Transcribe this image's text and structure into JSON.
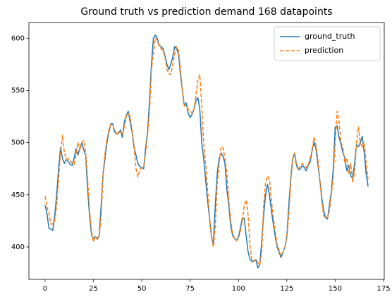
{
  "chart_data": {
    "type": "line",
    "title": "Ground truth vs prediction demand 168 datapoints",
    "x": [
      0,
      1,
      2,
      3,
      4,
      5,
      6,
      7,
      8,
      9,
      10,
      11,
      12,
      13,
      14,
      15,
      16,
      17,
      18,
      19,
      20,
      21,
      22,
      23,
      24,
      25,
      26,
      27,
      28,
      29,
      30,
      31,
      32,
      33,
      34,
      35,
      36,
      37,
      38,
      39,
      40,
      41,
      42,
      43,
      44,
      45,
      46,
      47,
      48,
      49,
      50,
      51,
      52,
      53,
      54,
      55,
      56,
      57,
      58,
      59,
      60,
      61,
      62,
      63,
      64,
      65,
      66,
      67,
      68,
      69,
      70,
      71,
      72,
      73,
      74,
      75,
      76,
      77,
      78,
      79,
      80,
      81,
      82,
      83,
      84,
      85,
      86,
      87,
      88,
      89,
      90,
      91,
      92,
      93,
      94,
      95,
      96,
      97,
      98,
      99,
      100,
      101,
      102,
      103,
      104,
      105,
      106,
      107,
      108,
      109,
      110,
      111,
      112,
      113,
      114,
      115,
      116,
      117,
      118,
      119,
      120,
      121,
      122,
      123,
      124,
      125,
      126,
      127,
      128,
      129,
      130,
      131,
      132,
      133,
      134,
      135,
      136,
      137,
      138,
      139,
      140,
      141,
      142,
      143,
      144,
      145,
      146,
      147,
      148,
      149,
      150,
      151,
      152,
      153,
      154,
      155,
      156,
      157,
      158,
      159,
      160,
      161,
      162,
      163,
      164,
      165,
      166,
      167
    ],
    "series": [
      {
        "name": "ground_truth",
        "color": "#1f77b4",
        "dash": "solid",
        "values": [
          440,
          432,
          418,
          417,
          416,
          430,
          450,
          475,
          495,
          485,
          480,
          484,
          482,
          479,
          478,
          485,
          494,
          488,
          495,
          500,
          493,
          488,
          455,
          430,
          412,
          408,
          410,
          408,
          411,
          440,
          470,
          485,
          500,
          510,
          518,
          518,
          510,
          508,
          509,
          512,
          505,
          520,
          526,
          530,
          520,
          510,
          495,
          488,
          480,
          477,
          476,
          475,
          495,
          510,
          540,
          575,
          600,
          603,
          600,
          593,
          592,
          590,
          583,
          575,
          570,
          575,
          582,
          592,
          590,
          585,
          565,
          550,
          535,
          538,
          528,
          524,
          527,
          532,
          540,
          543,
          532,
          500,
          485,
          465,
          445,
          428,
          410,
          403,
          440,
          470,
          485,
          490,
          487,
          480,
          455,
          440,
          420,
          411,
          408,
          406,
          410,
          418,
          428,
          427,
          410,
          395,
          388,
          386,
          387,
          388,
          380,
          383,
          405,
          430,
          450,
          460,
          450,
          435,
          422,
          410,
          400,
          395,
          390,
          395,
          400,
          410,
          440,
          465,
          484,
          490,
          478,
          474,
          475,
          478,
          476,
          473,
          478,
          481,
          492,
          500,
          495,
          480,
          465,
          448,
          435,
          428,
          427,
          440,
          453,
          475,
          515,
          516,
          505,
          498,
          490,
          485,
          473,
          478,
          468,
          466,
          480,
          498,
          496,
          500,
          506,
          490,
          470,
          458
        ]
      },
      {
        "name": "prediction",
        "color": "#ff7f0e",
        "dash": "dashed",
        "values": [
          449,
          438,
          432,
          422,
          422,
          425,
          440,
          465,
          490,
          507,
          490,
          484,
          485,
          483,
          480,
          479,
          488,
          500,
          492,
          500,
          502,
          490,
          465,
          435,
          415,
          405,
          410,
          407,
          410,
          430,
          470,
          490,
          503,
          512,
          517,
          517,
          512,
          508,
          510,
          510,
          508,
          515,
          525,
          528,
          525,
          512,
          497,
          475,
          467,
          474,
          476,
          478,
          490,
          508,
          530,
          570,
          585,
          600,
          598,
          592,
          590,
          588,
          582,
          570,
          566,
          565,
          575,
          585,
          592,
          588,
          570,
          550,
          535,
          535,
          532,
          530,
          528,
          532,
          545,
          560,
          565,
          535,
          500,
          480,
          455,
          430,
          410,
          400,
          420,
          460,
          480,
          496,
          495,
          485,
          470,
          445,
          425,
          413,
          408,
          406,
          408,
          415,
          425,
          440,
          445,
          430,
          400,
          387,
          386,
          388,
          385,
          383,
          395,
          440,
          462,
          468,
          465,
          445,
          428,
          415,
          402,
          397,
          392,
          395,
          400,
          410,
          430,
          462,
          485,
          490,
          480,
          475,
          478,
          480,
          478,
          476,
          478,
          485,
          492,
          505,
          498,
          485,
          465,
          445,
          430,
          428,
          428,
          435,
          450,
          468,
          500,
          530,
          520,
          500,
          495,
          480,
          485,
          470,
          480,
          462,
          470,
          500,
          515,
          500,
          495,
          500,
          480,
          465
        ]
      }
    ],
    "xlim": [
      -8.35,
      175.35
    ],
    "xticks": [
      0,
      25,
      50,
      75,
      100,
      125,
      150,
      175
    ],
    "ylim": [
      369,
      615
    ],
    "yticks": [
      400,
      450,
      500,
      550,
      600
    ],
    "grid": false,
    "legend": "upper right"
  }
}
